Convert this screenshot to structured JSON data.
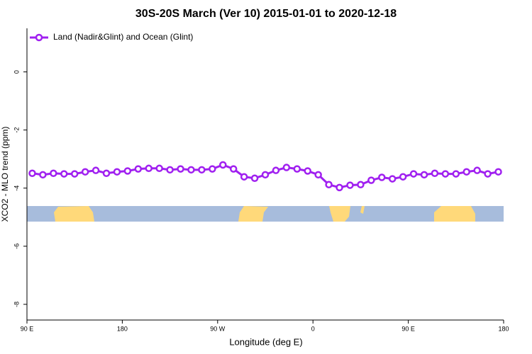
{
  "chart_data": {
    "type": "line",
    "title": "30S-20S March (Ver 10)   2015-01-01 to 2020-12-18",
    "x_label": "Longitude (deg E)",
    "y_label": "XCO2 - MLO trend (ppm)",
    "x": [
      95,
      105,
      115,
      125,
      135,
      145,
      155,
      165,
      175,
      185,
      195,
      205,
      215,
      225,
      235,
      245,
      255,
      265,
      275,
      285,
      295,
      305,
      315,
      325,
      335,
      345,
      355,
      365,
      375,
      385,
      395,
      405,
      415,
      425,
      435,
      445,
      455,
      465,
      475,
      485,
      495,
      505,
      515,
      525,
      535
    ],
    "series": [
      {
        "name": "Land (Nadir&Glint) and Ocean (Glint)",
        "color": "#a020f0",
        "values": [
          -3.49,
          -3.54,
          -3.49,
          -3.51,
          -3.51,
          -3.44,
          -3.39,
          -3.49,
          -3.44,
          -3.41,
          -3.34,
          -3.32,
          -3.32,
          -3.37,
          -3.34,
          -3.37,
          -3.37,
          -3.34,
          -3.2,
          -3.34,
          -3.61,
          -3.66,
          -3.54,
          -3.39,
          -3.29,
          -3.34,
          -3.41,
          -3.54,
          -3.88,
          -3.98,
          -3.9,
          -3.88,
          -3.73,
          -3.63,
          -3.68,
          -3.61,
          -3.51,
          -3.54,
          -3.49,
          -3.51,
          -3.51,
          -3.44,
          -3.39,
          -3.51,
          -3.44
        ]
      }
    ],
    "xlim": [
      90,
      540
    ],
    "xticks": [
      {
        "value": 90,
        "label": "90 E"
      },
      180,
      {
        "value": 270,
        "label": "90 W"
      },
      {
        "value": 360,
        "label": "0"
      },
      {
        "value": 450,
        "label": "90 E"
      },
      {
        "value": 540,
        "label": "180"
      }
    ],
    "ylim": [
      -8.54,
      1.5
    ],
    "yticks": [
      0,
      -2,
      -4,
      -6,
      -8
    ],
    "legend": "top-left"
  }
}
